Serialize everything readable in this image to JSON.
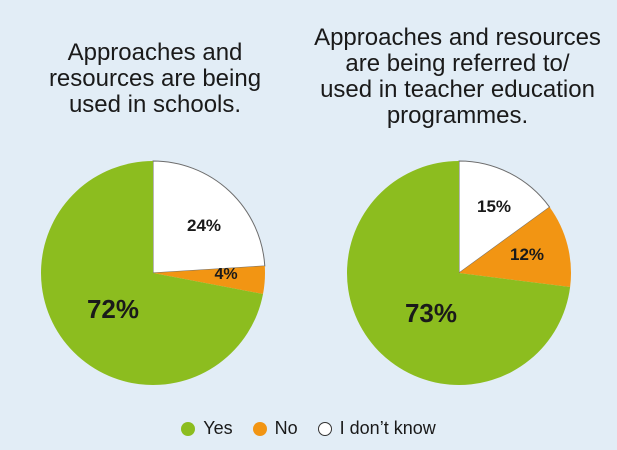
{
  "chart_data": [
    {
      "type": "pie",
      "title": "Approaches and\nresources are being\nused in schools.",
      "categories": [
        "Yes",
        "No",
        "I don’t know"
      ],
      "values": [
        72,
        4,
        24
      ],
      "labels": [
        "72%",
        "4%",
        "24%"
      ]
    },
    {
      "type": "pie",
      "title": "Approaches and resources\nare being referred to/\nused in teacher education\nprogrammes.",
      "categories": [
        "Yes",
        "No",
        "I don’t know"
      ],
      "values": [
        73,
        12,
        15
      ],
      "labels": [
        "73%",
        "12%",
        "15%"
      ]
    }
  ],
  "legend": [
    {
      "label": "Yes",
      "color": "#8cbd1f"
    },
    {
      "label": "No",
      "color": "#f29513"
    },
    {
      "label": "I don’t know",
      "color": "#ffffff"
    }
  ],
  "colors": {
    "yes": "#8cbd1f",
    "no": "#f29513",
    "dont_know": "#ffffff",
    "background": "#e2edf6",
    "outline": "#6d6d6d"
  }
}
